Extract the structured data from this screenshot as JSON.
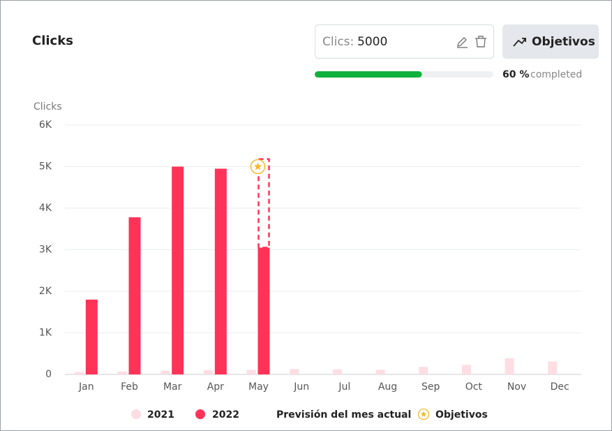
{
  "header": {
    "title": "Clicks",
    "input_label": "Clics:",
    "input_value": "5000",
    "button": "Objetivos",
    "progress": {
      "value": 60,
      "label": "60 %",
      "suffix": "completed"
    }
  },
  "chart_data": {
    "type": "bar",
    "y_label": "Clicks",
    "categories": [
      "Jan",
      "Feb",
      "Mar",
      "Apr",
      "May",
      "Jun",
      "Jul",
      "Aug",
      "Sep",
      "Oct",
      "Nov",
      "Dec"
    ],
    "series": [
      {
        "name": "2021",
        "color": "#ffdde3",
        "values": [
          60,
          70,
          90,
          100,
          110,
          130,
          120,
          110,
          180,
          230,
          390,
          310
        ]
      },
      {
        "name": "2022",
        "color": "#ff3358",
        "values": [
          1800,
          3780,
          5000,
          4950,
          3050,
          null,
          null,
          null,
          null,
          null,
          null,
          null
        ]
      },
      {
        "name": "Previsión del mes actual",
        "color": "#ff3358",
        "values": [
          null,
          null,
          null,
          null,
          5180,
          null,
          null,
          null,
          null,
          null,
          null,
          null
        ]
      },
      {
        "name": "Objetivos",
        "color": "#f5b82e",
        "values": [
          null,
          null,
          null,
          null,
          5000,
          null,
          null,
          null,
          null,
          null,
          null,
          null
        ]
      }
    ],
    "ylim": [
      0,
      6000
    ],
    "yticks": [
      0,
      {
        "value": 1000,
        "label": "1K"
      },
      {
        "value": 2000,
        "label": "2K"
      },
      {
        "value": 3000,
        "label": "3K"
      },
      {
        "value": 4000,
        "label": "4K"
      },
      {
        "value": 5000,
        "label": "5K"
      },
      {
        "value": 6000,
        "label": "6K"
      }
    ],
    "grid": true
  }
}
